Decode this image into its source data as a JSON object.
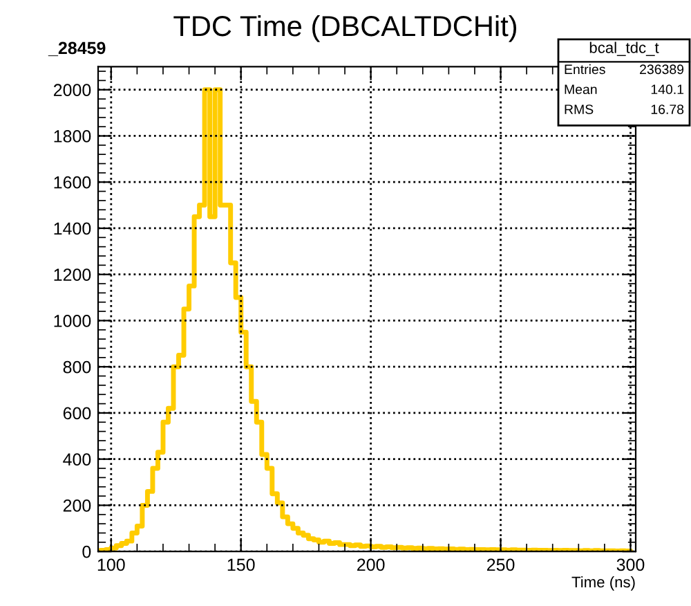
{
  "chart_data": {
    "type": "histogram",
    "title": "TDC Time (DBCALTDCHit)",
    "xlabel": "Time (ns)",
    "bins": [
      96,
      98,
      100,
      102,
      104,
      106,
      108,
      110,
      112,
      114,
      116,
      118,
      120,
      122,
      124,
      126,
      128,
      130,
      132,
      134,
      136,
      138,
      140,
      142,
      144,
      146,
      148,
      150,
      152,
      154,
      156,
      158,
      160,
      162,
      164,
      166,
      168,
      170,
      172,
      174,
      176,
      178,
      180,
      182,
      184,
      186,
      188,
      190,
      192,
      194,
      196,
      198,
      200,
      202,
      204,
      206,
      208,
      210,
      212,
      214,
      216,
      218,
      220,
      222,
      224,
      226,
      228,
      230,
      232,
      234,
      236,
      238,
      240,
      242,
      244,
      246,
      248,
      250,
      252,
      254,
      256,
      258,
      260,
      262,
      264,
      266,
      268,
      270,
      272,
      274,
      276,
      278,
      280,
      282,
      284,
      286,
      288,
      290,
      292,
      294,
      296,
      298,
      300
    ],
    "values": [
      5,
      8,
      15,
      25,
      35,
      45,
      80,
      110,
      200,
      260,
      360,
      430,
      560,
      620,
      800,
      850,
      1050,
      1150,
      1450,
      1500,
      2000,
      1450,
      2000,
      1500,
      1500,
      1250,
      1100,
      950,
      800,
      650,
      560,
      420,
      360,
      250,
      210,
      150,
      120,
      100,
      80,
      70,
      55,
      50,
      40,
      45,
      35,
      38,
      30,
      30,
      25,
      28,
      22,
      24,
      20,
      22,
      18,
      20,
      16,
      18,
      15,
      16,
      13,
      15,
      12,
      13,
      11,
      12,
      10,
      11,
      9,
      10,
      8,
      9,
      8,
      8,
      7,
      8,
      7,
      7,
      6,
      7,
      6,
      6,
      5,
      6,
      5,
      5,
      4,
      5,
      4,
      5,
      4,
      4,
      3,
      4,
      3,
      4,
      3,
      3,
      3,
      2,
      3,
      2
    ],
    "color": "#ffcc00",
    "xlim": [
      95,
      302
    ],
    "ylim": [
      0,
      2100
    ],
    "xticks": [
      100,
      150,
      200,
      250,
      300
    ],
    "yticks": [
      0,
      200,
      400,
      600,
      800,
      1000,
      1200,
      1400,
      1600,
      1800,
      2000
    ],
    "grid": true,
    "legend": false,
    "annotations": [
      "_28459",
      "bcal_tdc_t",
      "Entries",
      "236389",
      "Mean",
      "140.1",
      "RMS",
      "16.78"
    ]
  }
}
